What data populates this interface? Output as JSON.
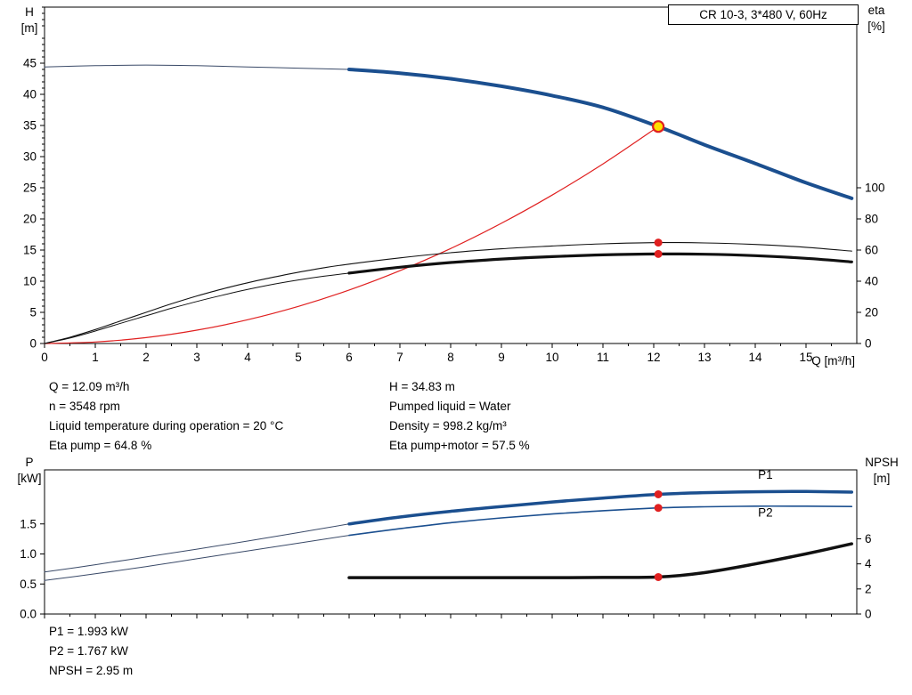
{
  "window": {
    "title_box": "CR 10-3, 3*480 V, 60Hz"
  },
  "colors": {
    "pump_blue": "#1b4f8f",
    "curve_black": "#111111",
    "marker_red": "#e02020",
    "extension_navy": "#3a4a68",
    "op_fill": "#ffdf00",
    "frame": "#000000"
  },
  "annotations": {
    "left": [
      "Q = 12.09 m³/h",
      "n = 3548 rpm",
      "Liquid temperature during operation = 20 °C",
      "Eta pump = 64.8 %"
    ],
    "right": [
      "H = 34.83 m",
      "Pumped liquid = Water",
      "Density = 998.2 kg/m³",
      "Eta pump+motor = 57.5 %"
    ],
    "bottom": [
      "P1 = 1.993 kW",
      "P2 = 1.767 kW",
      "NPSH = 2.95 m"
    ]
  },
  "chart_data": [
    {
      "type": "line",
      "title": "CR 10-3, 3*480 V, 60Hz",
      "xlabel": "Q [m³/h]",
      "ylabel_left_lines": [
        "H",
        "[m]"
      ],
      "ylabel_right_lines": [
        "eta",
        "[%]"
      ],
      "xlim": [
        0,
        16
      ],
      "ylim_left": [
        0,
        54
      ],
      "ylim_right": [
        0,
        216
      ],
      "x_ticks": [
        0,
        1,
        2,
        3,
        4,
        5,
        6,
        7,
        8,
        9,
        10,
        11,
        12,
        13,
        14,
        15
      ],
      "y_ticks_left": [
        0,
        5,
        10,
        15,
        20,
        25,
        30,
        35,
        40,
        45
      ],
      "y_ticks_right": [
        0,
        20,
        40,
        60,
        80,
        100
      ],
      "series": [
        {
          "name": "pump-curve-extension",
          "axis": "left",
          "color": "#3a4a68",
          "width": 1,
          "x": [
            0,
            1,
            2,
            3,
            4,
            5,
            6
          ],
          "y": [
            44.4,
            44.6,
            44.7,
            44.6,
            44.4,
            44.2,
            44.0
          ]
        },
        {
          "name": "pump-curve",
          "axis": "left",
          "color": "#1b4f8f",
          "width": 4,
          "x": [
            6,
            7,
            8,
            9,
            10,
            11,
            12.09,
            13,
            14,
            15,
            15.9
          ],
          "y": [
            44.0,
            43.4,
            42.5,
            41.3,
            39.8,
            37.9,
            34.83,
            31.9,
            28.9,
            25.8,
            23.3
          ]
        },
        {
          "name": "system-curve",
          "axis": "left",
          "color": "#e02020",
          "width": 1.2,
          "x": [
            0,
            1,
            2,
            3,
            4,
            5,
            6,
            7,
            8,
            9,
            10,
            11,
            12.09
          ],
          "y": [
            0,
            0.24,
            0.95,
            2.14,
            3.81,
            5.96,
            8.58,
            11.68,
            15.25,
            19.3,
            23.83,
            28.83,
            34.83
          ]
        },
        {
          "name": "eta-pump-curve",
          "axis": "right",
          "color": "#111111",
          "width": 1.1,
          "x": [
            0,
            0.5,
            1,
            1.5,
            2,
            2.5,
            3,
            3.5,
            4,
            4.5,
            5,
            5.5,
            6,
            7,
            8,
            9,
            10,
            11,
            12.09,
            13,
            14,
            15,
            15.9
          ],
          "y": [
            0,
            4,
            9,
            14.5,
            20,
            25.5,
            30.5,
            35,
            39,
            42.5,
            45.8,
            48.6,
            51,
            55,
            58.3,
            60.8,
            62.6,
            64,
            64.8,
            64.6,
            63.6,
            61.8,
            59.3
          ]
        },
        {
          "name": "eta-pump-motor-curve-extension",
          "axis": "right",
          "color": "#111111",
          "width": 1,
          "x": [
            0,
            0.5,
            1,
            1.5,
            2,
            2.5,
            3,
            3.5,
            4,
            4.5,
            5,
            5.5,
            6
          ],
          "y": [
            0,
            3.5,
            8,
            13,
            17.8,
            22.6,
            27,
            31,
            34.7,
            38,
            40.8,
            43.2,
            45.2
          ]
        },
        {
          "name": "eta-pump-motor-curve",
          "axis": "right",
          "color": "#111111",
          "width": 3.2,
          "x": [
            6,
            7,
            8,
            9,
            10,
            11,
            12.09,
            13,
            14,
            15,
            15.9
          ],
          "y": [
            45.2,
            49,
            52,
            54.2,
            55.8,
            56.9,
            57.5,
            57.3,
            56.4,
            54.7,
            52.4
          ]
        }
      ],
      "points": [
        {
          "name": "operating-point-marker",
          "x": 12.09,
          "y": 34.83,
          "axis": "left",
          "style": "op"
        },
        {
          "name": "eta-pump-point",
          "x": 12.09,
          "y": 64.8,
          "axis": "right",
          "style": "dot"
        },
        {
          "name": "eta-pump-motor-point",
          "x": 12.09,
          "y": 57.5,
          "axis": "right",
          "style": "dot"
        }
      ],
      "curve_labels": []
    },
    {
      "type": "line",
      "title": "",
      "xlabel": "",
      "ylabel_left_lines": [
        "P",
        "[kW]"
      ],
      "ylabel_right_lines": [
        "NPSH",
        "[m]"
      ],
      "xlim": [
        0,
        16
      ],
      "ylim_left": [
        0,
        2.4
      ],
      "ylim_right": [
        0,
        11.5
      ],
      "x_ticks": [
        0,
        1,
        2,
        3,
        4,
        5,
        6,
        7,
        8,
        9,
        10,
        11,
        12,
        13,
        14,
        15
      ],
      "y_ticks_left": [
        0,
        0.5,
        1,
        1.5
      ],
      "y_tick_labels_left": [
        "0.0",
        "0.5",
        "1.0",
        "1.5"
      ],
      "y_ticks_right": [
        0,
        2,
        4,
        6
      ],
      "series": [
        {
          "name": "p1-curve-extension",
          "axis": "left",
          "color": "#3a4a68",
          "width": 1,
          "x": [
            0,
            1,
            2,
            3,
            4,
            5,
            6
          ],
          "y": [
            0.7,
            0.82,
            0.95,
            1.08,
            1.215,
            1.355,
            1.5
          ]
        },
        {
          "name": "p2-curve-extension",
          "axis": "left",
          "color": "#3a4a68",
          "width": 1,
          "x": [
            0,
            1,
            2,
            3,
            4,
            5,
            6
          ],
          "y": [
            0.56,
            0.67,
            0.79,
            0.92,
            1.05,
            1.18,
            1.31
          ]
        },
        {
          "name": "p1-curve",
          "axis": "left",
          "color": "#1b4f8f",
          "width": 3.5,
          "x": [
            6,
            7,
            8,
            9,
            10,
            11,
            12.09,
            13,
            14,
            15,
            15.9
          ],
          "y": [
            1.5,
            1.615,
            1.71,
            1.79,
            1.865,
            1.93,
            1.993,
            2.02,
            2.035,
            2.04,
            2.03
          ]
        },
        {
          "name": "p2-curve",
          "axis": "left",
          "color": "#1b4f8f",
          "width": 1.6,
          "x": [
            6,
            7,
            8,
            9,
            10,
            11,
            12.09,
            13,
            14,
            15,
            15.9
          ],
          "y": [
            1.31,
            1.42,
            1.52,
            1.6,
            1.665,
            1.72,
            1.767,
            1.785,
            1.795,
            1.795,
            1.79
          ]
        },
        {
          "name": "npsh-curve",
          "axis": "right",
          "color": "#111111",
          "width": 3.5,
          "x": [
            6,
            7,
            8,
            9,
            10,
            11,
            12.09,
            13,
            14,
            15,
            15.9
          ],
          "y": [
            2.9,
            2.9,
            2.9,
            2.9,
            2.9,
            2.92,
            2.95,
            3.3,
            4.0,
            4.8,
            5.6
          ]
        }
      ],
      "points": [
        {
          "name": "p1-point",
          "x": 12.09,
          "y": 1.993,
          "axis": "left",
          "style": "dot"
        },
        {
          "name": "p2-point",
          "x": 12.09,
          "y": 1.767,
          "axis": "left",
          "style": "dot"
        },
        {
          "name": "npsh-point",
          "x": 12.09,
          "y": 2.95,
          "axis": "right",
          "style": "dot"
        }
      ],
      "curve_labels": [
        {
          "text": "P1",
          "x": 14.2,
          "y": 2.25,
          "axis": "left"
        },
        {
          "text": "P2",
          "x": 14.2,
          "y": 1.62,
          "axis": "left"
        }
      ]
    }
  ]
}
